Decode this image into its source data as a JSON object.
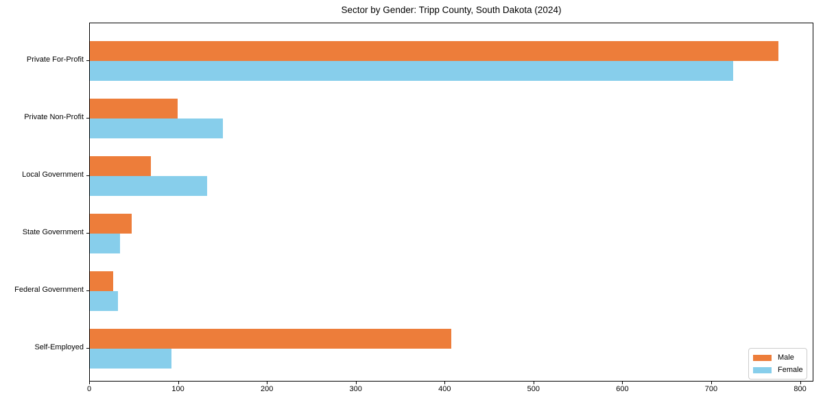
{
  "chart_data": {
    "type": "bar",
    "orientation": "horizontal",
    "title": "Sector by Gender: Tripp County, South Dakota (2024)",
    "categories": [
      "Private For-Profit",
      "Private Non-Profit",
      "Local Government",
      "State Government",
      "Federal Government",
      "Self-Employed"
    ],
    "series": [
      {
        "name": "Male",
        "color": "#ED7D3A",
        "values": [
          775,
          99,
          69,
          47,
          26,
          407
        ]
      },
      {
        "name": "Female",
        "color": "#87CEEB",
        "values": [
          724,
          150,
          132,
          34,
          32,
          92
        ]
      }
    ],
    "xlabel": "",
    "ylabel": "",
    "xlim": [
      0,
      815
    ],
    "xticks": [
      0,
      100,
      200,
      300,
      400,
      500,
      600,
      700,
      800
    ],
    "grid": false,
    "legend": {
      "position": "lower right",
      "entries": [
        "Male",
        "Female"
      ]
    },
    "background_color": "#ffffff",
    "axis_color": "#000000"
  }
}
